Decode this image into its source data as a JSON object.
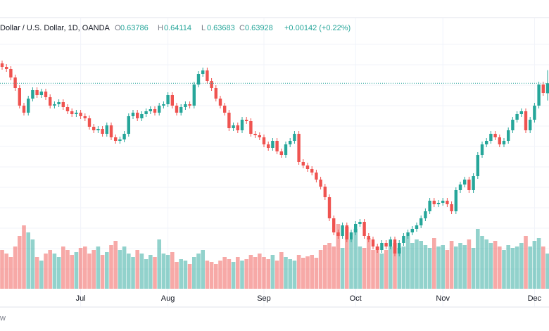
{
  "chart_data": {
    "type": "candlestick",
    "header": {
      "symbol": "Dollar / U.S. Dollar, 1D, OANDA",
      "o_label": "O",
      "h_label": "H",
      "l_label": "L",
      "c_label": "C",
      "change": "+0.00142 (+0.22%)"
    },
    "footer": "w",
    "up_color": "#26a69a",
    "down_color": "#ef5350",
    "ylim": [
      0.6101,
      0.6481
    ],
    "volume_lim": [
      0,
      120
    ],
    "categories": [
      null,
      null,
      null,
      null,
      null,
      null,
      null,
      null,
      null,
      null,
      null,
      null,
      null,
      null,
      null,
      null,
      null,
      null,
      "Jul",
      null,
      null,
      null,
      null,
      null,
      null,
      null,
      null,
      null,
      null,
      null,
      null,
      null,
      null,
      null,
      null,
      null,
      null,
      null,
      "Aug",
      null,
      null,
      null,
      null,
      null,
      null,
      null,
      null,
      null,
      null,
      null,
      null,
      null,
      null,
      null,
      null,
      null,
      null,
      null,
      null,
      null,
      "Sep",
      null,
      null,
      null,
      null,
      null,
      null,
      null,
      null,
      null,
      null,
      null,
      null,
      null,
      null,
      null,
      null,
      null,
      null,
      null,
      null,
      "Oct",
      null,
      null,
      null,
      null,
      null,
      null,
      null,
      null,
      null,
      null,
      null,
      null,
      null,
      null,
      null,
      null,
      null,
      null,
      null,
      "Nov",
      null,
      null,
      null,
      null,
      null,
      null,
      null,
      null,
      null,
      null,
      null,
      null,
      null,
      null,
      null,
      null,
      null,
      null,
      null,
      null,
      "Dec",
      null,
      null,
      null
    ],
    "open": [
      0.6421,
      0.6416,
      0.6413,
      0.6401,
      0.6386,
      0.6361,
      0.6351,
      0.6371,
      0.6383,
      0.6376,
      0.6381,
      0.6373,
      0.6361,
      0.6363,
      0.6366,
      0.6359,
      0.6353,
      0.6349,
      0.6351,
      0.6346,
      0.6343,
      0.6331,
      0.6326,
      0.6328,
      0.6321,
      0.6333,
      0.6316,
      0.6311,
      0.6313,
      0.6321,
      0.6346,
      0.6351,
      0.6343,
      0.6349,
      0.6353,
      0.6356,
      0.6351,
      0.6361,
      0.6363,
      0.6376,
      0.6361,
      0.6351,
      0.6359,
      0.6363,
      0.6361,
      0.6391,
      0.6406,
      0.6411,
      0.6396,
      0.6386,
      0.6371,
      0.6361,
      0.6351,
      0.6329,
      0.6333,
      0.6326,
      0.6341,
      0.6339,
      0.6321,
      0.6319,
      0.6316,
      0.6306,
      0.6301,
      0.6311,
      0.6296,
      0.6291,
      0.6306,
      0.6311,
      0.6321,
      0.6281,
      0.6276,
      0.6271,
      0.6266,
      0.6256,
      0.6246,
      0.6231,
      0.6201,
      0.6181,
      0.6176,
      0.6191,
      0.6171,
      0.6181,
      0.6193,
      0.6196,
      0.6176,
      0.6171,
      0.6161,
      0.6156,
      0.6166,
      0.6161,
      0.6171,
      0.6151,
      0.6166,
      0.6176,
      0.6181,
      0.6186,
      0.6191,
      0.6201,
      0.6211,
      0.6226,
      0.6221,
      0.6223,
      0.6226,
      0.6221,
      0.6211,
      0.6241,
      0.6249,
      0.6256,
      0.6241,
      0.6261,
      0.6291,
      0.6306,
      0.6311,
      0.6321,
      0.6316,
      0.6306,
      0.6311,
      0.6326,
      0.6341,
      0.6349,
      0.6353,
      0.6326,
      0.6341,
      0.6361,
      0.6391,
      0.63786
    ],
    "high": [
      0.6425,
      0.642,
      0.6417,
      0.6405,
      0.639,
      0.6365,
      0.6375,
      0.6387,
      0.6387,
      0.6385,
      0.6385,
      0.6377,
      0.6367,
      0.637,
      0.637,
      0.6363,
      0.6357,
      0.6355,
      0.6355,
      0.635,
      0.6347,
      0.6335,
      0.6332,
      0.6332,
      0.6337,
      0.6337,
      0.632,
      0.6317,
      0.6325,
      0.635,
      0.6355,
      0.6355,
      0.6353,
      0.6357,
      0.636,
      0.636,
      0.6365,
      0.6367,
      0.638,
      0.638,
      0.6365,
      0.6363,
      0.6367,
      0.6367,
      0.6395,
      0.641,
      0.6415,
      0.6415,
      0.64,
      0.639,
      0.6375,
      0.6365,
      0.6355,
      0.6337,
      0.6337,
      0.6345,
      0.6345,
      0.6343,
      0.6325,
      0.6323,
      0.632,
      0.631,
      0.6315,
      0.6315,
      0.63,
      0.631,
      0.6315,
      0.6325,
      0.6325,
      0.6285,
      0.628,
      0.6275,
      0.627,
      0.626,
      0.625,
      0.6235,
      0.6205,
      0.6185,
      0.6195,
      0.6195,
      0.6185,
      0.6197,
      0.62,
      0.62,
      0.618,
      0.6175,
      0.6165,
      0.617,
      0.617,
      0.6175,
      0.6175,
      0.617,
      0.618,
      0.6185,
      0.619,
      0.6195,
      0.6205,
      0.6215,
      0.623,
      0.623,
      0.6227,
      0.623,
      0.623,
      0.6225,
      0.6245,
      0.6253,
      0.626,
      0.626,
      0.6265,
      0.6295,
      0.631,
      0.6315,
      0.6325,
      0.6325,
      0.632,
      0.6315,
      0.633,
      0.6345,
      0.6353,
      0.6357,
      0.6357,
      0.6345,
      0.6365,
      0.6395,
      0.6395,
      0.64114
    ],
    "low": [
      0.6412,
      0.6409,
      0.6397,
      0.6382,
      0.6357,
      0.6347,
      0.6347,
      0.6367,
      0.6372,
      0.6372,
      0.6369,
      0.6357,
      0.6357,
      0.6359,
      0.6355,
      0.6349,
      0.6345,
      0.6345,
      0.6342,
      0.6339,
      0.6327,
      0.6322,
      0.6322,
      0.6317,
      0.6317,
      0.6312,
      0.6307,
      0.6307,
      0.6309,
      0.6317,
      0.6342,
      0.6339,
      0.6339,
      0.6345,
      0.6349,
      0.6347,
      0.6347,
      0.6357,
      0.6359,
      0.6357,
      0.6347,
      0.6347,
      0.6355,
      0.6357,
      0.6357,
      0.6387,
      0.6402,
      0.6392,
      0.6382,
      0.6367,
      0.6357,
      0.6347,
      0.6325,
      0.6325,
      0.6322,
      0.6322,
      0.6335,
      0.6317,
      0.6315,
      0.6312,
      0.6302,
      0.6297,
      0.6297,
      0.6292,
      0.6287,
      0.6287,
      0.6302,
      0.6307,
      0.6277,
      0.6272,
      0.6267,
      0.6262,
      0.6252,
      0.6242,
      0.6227,
      0.6197,
      0.6177,
      0.6172,
      0.6172,
      0.6167,
      0.6167,
      0.6177,
      0.6189,
      0.6172,
      0.6167,
      0.6157,
      0.6152,
      0.6152,
      0.6157,
      0.6157,
      0.6147,
      0.6147,
      0.6162,
      0.6172,
      0.6177,
      0.6182,
      0.6187,
      0.6197,
      0.6207,
      0.6217,
      0.6217,
      0.6219,
      0.6217,
      0.6207,
      0.6207,
      0.6237,
      0.6245,
      0.6237,
      0.6237,
      0.6257,
      0.6287,
      0.6302,
      0.6307,
      0.6312,
      0.6302,
      0.6302,
      0.6307,
      0.6322,
      0.6337,
      0.6345,
      0.6322,
      0.6322,
      0.6337,
      0.6357,
      0.6375,
      0.63683
    ],
    "close": [
      0.6416,
      0.6413,
      0.6401,
      0.6386,
      0.6361,
      0.6351,
      0.6371,
      0.6383,
      0.6376,
      0.6381,
      0.6373,
      0.6361,
      0.6363,
      0.6366,
      0.6359,
      0.6353,
      0.6349,
      0.6351,
      0.6346,
      0.6343,
      0.6331,
      0.6326,
      0.6328,
      0.6321,
      0.6333,
      0.6316,
      0.6311,
      0.6313,
      0.6321,
      0.6346,
      0.6351,
      0.6343,
      0.6349,
      0.6353,
      0.6356,
      0.6351,
      0.6361,
      0.6363,
      0.6376,
      0.6361,
      0.6351,
      0.6359,
      0.6363,
      0.6361,
      0.6391,
      0.6406,
      0.6411,
      0.6396,
      0.6386,
      0.6371,
      0.6361,
      0.6351,
      0.6329,
      0.6333,
      0.6326,
      0.6341,
      0.6339,
      0.6321,
      0.6319,
      0.6316,
      0.6306,
      0.6301,
      0.6311,
      0.6296,
      0.6291,
      0.6306,
      0.6311,
      0.6321,
      0.6281,
      0.6276,
      0.6271,
      0.6266,
      0.6256,
      0.6246,
      0.6231,
      0.6201,
      0.6181,
      0.6176,
      0.6191,
      0.6171,
      0.6181,
      0.6193,
      0.6196,
      0.6176,
      0.6171,
      0.6161,
      0.6156,
      0.6166,
      0.6161,
      0.6171,
      0.6151,
      0.6166,
      0.6176,
      0.6181,
      0.6186,
      0.6191,
      0.6201,
      0.6211,
      0.6226,
      0.6221,
      0.6223,
      0.6226,
      0.6221,
      0.6211,
      0.6241,
      0.6249,
      0.6256,
      0.6241,
      0.6261,
      0.6291,
      0.6306,
      0.6311,
      0.6321,
      0.6316,
      0.6306,
      0.6311,
      0.6326,
      0.6341,
      0.6349,
      0.6353,
      0.6326,
      0.6341,
      0.6361,
      0.6391,
      0.6379,
      0.63928
    ],
    "volume": [
      55,
      50,
      45,
      60,
      75,
      90,
      80,
      70,
      45,
      40,
      50,
      55,
      50,
      45,
      60,
      55,
      48,
      52,
      58,
      60,
      50,
      55,
      60,
      48,
      52,
      62,
      68,
      55,
      60,
      50,
      45,
      55,
      50,
      42,
      48,
      45,
      70,
      50,
      48,
      52,
      38,
      42,
      40,
      35,
      45,
      50,
      55,
      40,
      38,
      35,
      40,
      45,
      42,
      38,
      45,
      40,
      42,
      48,
      45,
      50,
      45,
      42,
      48,
      40,
      52,
      45,
      42,
      40,
      48,
      44,
      46,
      48,
      44,
      55,
      62,
      65,
      60,
      92,
      58,
      88,
      70,
      85,
      60,
      58,
      72,
      55,
      60,
      50,
      55,
      60,
      65,
      58,
      60,
      75,
      65,
      70,
      68,
      62,
      58,
      72,
      60,
      62,
      55,
      68,
      60,
      65,
      62,
      70,
      58,
      85,
      75,
      70,
      65,
      68,
      60,
      55,
      62,
      58,
      60,
      65,
      75,
      60,
      68,
      72,
      60,
      50
    ]
  }
}
